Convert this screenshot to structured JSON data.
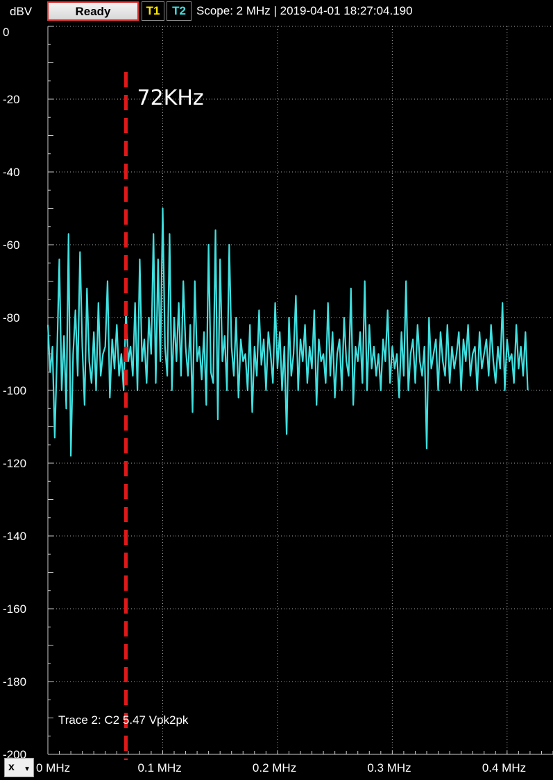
{
  "header": {
    "unit": "dBV",
    "status_button": "Ready",
    "trace1": "T1",
    "trace2": "T2",
    "scope_info": "Scope: 2 MHz | 2019-04-01 18:27:04.190"
  },
  "annotation": {
    "label": "72KHz",
    "x_mhz": 0.068
  },
  "trace_info": "Trace 2: C2 5.47 Vpk2pk",
  "x_selector": {
    "value": "x"
  },
  "colors": {
    "trace2": "#3fe0e0",
    "trace1": "#ffe800",
    "marker": "#e01818",
    "grid": "#aaaaaa"
  },
  "chart_data": {
    "type": "line",
    "ylabel": "dBV",
    "xlabel": "",
    "ylim": [
      -200,
      0
    ],
    "xlim": [
      0,
      0.44
    ],
    "grid": true,
    "yticks": [
      {
        "value": 0,
        "label": "0"
      },
      {
        "value": -20,
        "label": "-20"
      },
      {
        "value": -40,
        "label": "-40"
      },
      {
        "value": -60,
        "label": "-60"
      },
      {
        "value": -80,
        "label": "-80"
      },
      {
        "value": -100,
        "label": "-100"
      },
      {
        "value": -120,
        "label": "-120"
      },
      {
        "value": -140,
        "label": "-140"
      },
      {
        "value": -160,
        "label": "-160"
      },
      {
        "value": -180,
        "label": "-180"
      },
      {
        "value": -200,
        "label": "-200"
      }
    ],
    "xticks": [
      {
        "value": 0,
        "label": "0 MHz"
      },
      {
        "value": 0.1,
        "label": "0.1 MHz"
      },
      {
        "value": 0.2,
        "label": "0.2 MHz"
      },
      {
        "value": 0.3,
        "label": "0.3 MHz"
      },
      {
        "value": 0.4,
        "label": "0.4 MHz"
      }
    ],
    "series": [
      {
        "x_start": 0,
        "x_step": 0.002,
        "values": [
          -82,
          -95,
          -88,
          -113,
          -90,
          -64,
          -100,
          -85,
          -105,
          -57,
          -118,
          -90,
          -78,
          -96,
          -62,
          -88,
          -104,
          -72,
          -92,
          -98,
          -84,
          -100,
          -76,
          -96,
          -90,
          -88,
          -70,
          -102,
          -86,
          -94,
          -82,
          -96,
          -90,
          -100,
          -78,
          -92,
          -88,
          -96,
          -76,
          -100,
          -64,
          -92,
          -86,
          -98,
          -80,
          -90,
          -57,
          -98,
          -64,
          -92,
          -50,
          -88,
          -96,
          -57,
          -100,
          -80,
          -92,
          -76,
          -96,
          -70,
          -88,
          -96,
          -82,
          -106,
          -70,
          -92,
          -88,
          -97,
          -84,
          -104,
          -60,
          -95,
          -98,
          -56,
          -108,
          -64,
          -92,
          -85,
          -100,
          -60,
          -88,
          -96,
          -80,
          -102,
          -86,
          -92,
          -90,
          -100,
          -82,
          -106,
          -88,
          -96,
          -78,
          -93,
          -86,
          -100,
          -84,
          -90,
          -98,
          -76,
          -94,
          -84,
          -100,
          -88,
          -112,
          -80,
          -96,
          -90,
          -74,
          -100,
          -86,
          -92,
          -82,
          -98,
          -88,
          -94,
          -78,
          -104,
          -86,
          -92,
          -90,
          -98,
          -76,
          -96,
          -84,
          -102,
          -90,
          -86,
          -100,
          -80,
          -92,
          -96,
          -72,
          -104,
          -88,
          -92,
          -84,
          -98,
          -70,
          -100,
          -82,
          -94,
          -88,
          -96,
          -90,
          -100,
          -86,
          -92,
          -78,
          -98,
          -88,
          -94,
          -90,
          -102,
          -84,
          -96,
          -70,
          -100,
          -90,
          -86,
          -98,
          -82,
          -92,
          -96,
          -88,
          -116,
          -80,
          -94,
          -90,
          -86,
          -100,
          -84,
          -92,
          -96,
          -82,
          -98,
          -88,
          -94,
          -90,
          -84,
          -100,
          -86,
          -92,
          -82,
          -96,
          -90,
          -88,
          -100,
          -84,
          -94,
          -90,
          -86,
          -96,
          -82,
          -92,
          -98,
          -88,
          -94,
          -76,
          -100,
          -86,
          -92,
          -90,
          -98,
          -82,
          -94,
          -88,
          -96,
          -84,
          -100
        ]
      }
    ]
  }
}
